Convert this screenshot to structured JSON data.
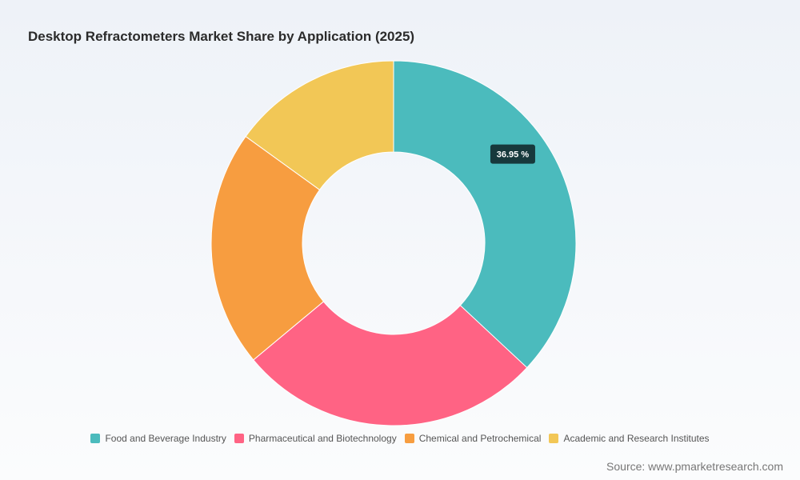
{
  "chart_data": {
    "type": "pie",
    "title": "Desktop Refractometers Market Share by Application (2025)",
    "categories": [
      "Food and Beverage Industry",
      "Pharmaceutical and Biotechnology",
      "Chemical and Petrochemical",
      "Academic and Research Institutes"
    ],
    "values": [
      36.95,
      27.0,
      21.0,
      15.05
    ],
    "colors": [
      "#4bbbbd",
      "#ff6384",
      "#f79d40",
      "#f2c756"
    ],
    "data_labels": [
      "36.95 %",
      "",
      "",
      ""
    ],
    "donut": true,
    "legend_position": "bottom"
  },
  "source": "Source: www.pmarketresearch.com"
}
